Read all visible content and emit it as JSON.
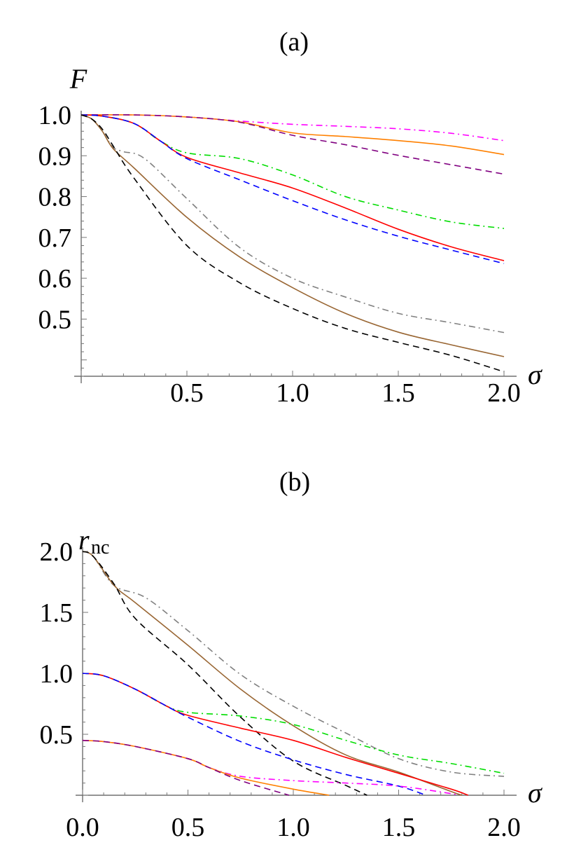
{
  "chart_data": [
    {
      "type": "line",
      "title": "(a)",
      "xlabel": "σ",
      "ylabel": "F",
      "xlim": [
        0,
        2.0
      ],
      "ylim": [
        0.36,
        1.0
      ],
      "grid": false,
      "xticks": [
        "0.5",
        "1.0",
        "1.5",
        "2.0"
      ],
      "yticks": [
        "0.5",
        "0.6",
        "0.7",
        "0.8",
        "0.9",
        "1.0"
      ],
      "series": [
        {
          "color": "#ff00ff",
          "style": "dotdash",
          "points": [
            [
              0,
              1
            ],
            [
              0.25,
              1.0
            ],
            [
              0.5,
              0.995
            ],
            [
              0.75,
              0.985
            ],
            [
              1.0,
              0.977
            ],
            [
              1.25,
              0.972
            ],
            [
              1.5,
              0.966
            ],
            [
              1.75,
              0.955
            ],
            [
              2.0,
              0.937
            ]
          ]
        },
        {
          "color": "#ff8000",
          "style": "solid",
          "points": [
            [
              0,
              1
            ],
            [
              0.25,
              1.0
            ],
            [
              0.5,
              0.995
            ],
            [
              0.75,
              0.983
            ],
            [
              1.0,
              0.956
            ],
            [
              1.25,
              0.947
            ],
            [
              1.5,
              0.937
            ],
            [
              1.75,
              0.924
            ],
            [
              2.0,
              0.903
            ]
          ]
        },
        {
          "color": "#800080",
          "style": "dashed",
          "points": [
            [
              0,
              1
            ],
            [
              0.25,
              1.0
            ],
            [
              0.5,
              0.995
            ],
            [
              0.75,
              0.982
            ],
            [
              1.0,
              0.95
            ],
            [
              1.25,
              0.927
            ],
            [
              1.5,
              0.901
            ],
            [
              1.75,
              0.878
            ],
            [
              2.0,
              0.855
            ]
          ]
        },
        {
          "color": "#00dd00",
          "style": "dotdash",
          "points": [
            [
              0,
              1
            ],
            [
              0.1,
              0.997
            ],
            [
              0.25,
              0.979
            ],
            [
              0.375,
              0.936
            ],
            [
              0.5,
              0.907
            ],
            [
              0.75,
              0.893
            ],
            [
              1.0,
              0.853
            ],
            [
              1.25,
              0.8
            ],
            [
              1.5,
              0.767
            ],
            [
              1.75,
              0.738
            ],
            [
              2.0,
              0.722
            ]
          ]
        },
        {
          "color": "#ff0000",
          "style": "solid",
          "points": [
            [
              0,
              1
            ],
            [
              0.1,
              0.997
            ],
            [
              0.25,
              0.979
            ],
            [
              0.375,
              0.936
            ],
            [
              0.5,
              0.896
            ],
            [
              0.75,
              0.858
            ],
            [
              1.0,
              0.821
            ],
            [
              1.25,
              0.772
            ],
            [
              1.5,
              0.72
            ],
            [
              1.75,
              0.677
            ],
            [
              2.0,
              0.643
            ]
          ]
        },
        {
          "color": "#0000ff",
          "style": "dashed",
          "points": [
            [
              0,
              1
            ],
            [
              0.1,
              0.997
            ],
            [
              0.25,
              0.979
            ],
            [
              0.375,
              0.936
            ],
            [
              0.5,
              0.893
            ],
            [
              0.75,
              0.841
            ],
            [
              1.0,
              0.79
            ],
            [
              1.25,
              0.743
            ],
            [
              1.5,
              0.703
            ],
            [
              1.75,
              0.669
            ],
            [
              2.0,
              0.636
            ]
          ]
        },
        {
          "color": "#808080",
          "style": "dotdash",
          "points": [
            [
              0,
              1
            ],
            [
              0.05,
              0.99
            ],
            [
              0.1,
              0.96
            ],
            [
              0.15,
              0.921
            ],
            [
              0.2,
              0.91
            ],
            [
              0.3,
              0.893
            ],
            [
              0.5,
              0.795
            ],
            [
              0.75,
              0.675
            ],
            [
              1.0,
              0.6
            ],
            [
              1.25,
              0.554
            ],
            [
              1.5,
              0.514
            ],
            [
              1.75,
              0.491
            ],
            [
              2.0,
              0.467
            ]
          ]
        },
        {
          "color": "#996633",
          "style": "solid",
          "points": [
            [
              0,
              1
            ],
            [
              0.05,
              0.99
            ],
            [
              0.1,
              0.96
            ],
            [
              0.15,
              0.918
            ],
            [
              0.25,
              0.87
            ],
            [
              0.5,
              0.749
            ],
            [
              0.75,
              0.652
            ],
            [
              1.0,
              0.577
            ],
            [
              1.25,
              0.514
            ],
            [
              1.5,
              0.468
            ],
            [
              1.75,
              0.437
            ],
            [
              2.0,
              0.408
            ]
          ]
        },
        {
          "color": "#000000",
          "style": "dashed",
          "points": [
            [
              0,
              1
            ],
            [
              0.05,
              0.99
            ],
            [
              0.1,
              0.965
            ],
            [
              0.15,
              0.925
            ],
            [
              0.25,
              0.845
            ],
            [
              0.5,
              0.68
            ],
            [
              0.75,
              0.589
            ],
            [
              1.0,
              0.526
            ],
            [
              1.25,
              0.477
            ],
            [
              1.5,
              0.443
            ],
            [
              1.75,
              0.411
            ],
            [
              2.0,
              0.371
            ]
          ]
        }
      ]
    },
    {
      "type": "line",
      "title": "(b)",
      "xlabel": "σ",
      "ylabel": "r",
      "ylabel_sub": "nc",
      "xlim": [
        0,
        2.0
      ],
      "ylim": [
        0,
        2.0
      ],
      "grid": false,
      "xticks": [
        "0.0",
        "0.5",
        "1.0",
        "1.5",
        "2.0"
      ],
      "yticks": [
        "0.5",
        "1.0",
        "1.5",
        "2.0"
      ],
      "series": [
        {
          "color": "#808080",
          "style": "dotdash",
          "points": [
            [
              0,
              2
            ],
            [
              0.05,
              1.96
            ],
            [
              0.15,
              1.72
            ],
            [
              0.3,
              1.62
            ],
            [
              0.5,
              1.35
            ],
            [
              0.75,
              0.99
            ],
            [
              1.0,
              0.73
            ],
            [
              1.25,
              0.51
            ],
            [
              1.5,
              0.3
            ],
            [
              1.75,
              0.19
            ],
            [
              2.0,
              0.155
            ]
          ]
        },
        {
          "color": "#996633",
          "style": "solid",
          "points": [
            [
              0,
              2
            ],
            [
              0.05,
              1.96
            ],
            [
              0.15,
              1.72
            ],
            [
              0.25,
              1.58
            ],
            [
              0.5,
              1.23
            ],
            [
              0.75,
              0.87
            ],
            [
              1.0,
              0.57
            ],
            [
              1.25,
              0.33
            ],
            [
              1.5,
              0.19
            ],
            [
              1.75,
              0.03
            ],
            [
              1.8,
              0
            ]
          ]
        },
        {
          "color": "#000000",
          "style": "dashed",
          "points": [
            [
              0,
              2
            ],
            [
              0.05,
              1.96
            ],
            [
              0.15,
              1.73
            ],
            [
              0.25,
              1.45
            ],
            [
              0.5,
              1.07
            ],
            [
              0.75,
              0.64
            ],
            [
              1.0,
              0.28
            ],
            [
              1.25,
              0.08
            ],
            [
              1.35,
              0
            ]
          ]
        },
        {
          "color": "#00dd00",
          "style": "dotdash",
          "points": [
            [
              0,
              1
            ],
            [
              0.1,
              0.98
            ],
            [
              0.25,
              0.87
            ],
            [
              0.4,
              0.73
            ],
            [
              0.5,
              0.68
            ],
            [
              0.75,
              0.65
            ],
            [
              1.0,
              0.58
            ],
            [
              1.25,
              0.45
            ],
            [
              1.5,
              0.33
            ],
            [
              1.75,
              0.26
            ],
            [
              2.0,
              0.18
            ]
          ]
        },
        {
          "color": "#ff0000",
          "style": "solid",
          "points": [
            [
              0,
              1
            ],
            [
              0.1,
              0.98
            ],
            [
              0.25,
              0.87
            ],
            [
              0.4,
              0.73
            ],
            [
              0.5,
              0.655
            ],
            [
              0.75,
              0.55
            ],
            [
              1.0,
              0.45
            ],
            [
              1.25,
              0.31
            ],
            [
              1.5,
              0.18
            ],
            [
              1.75,
              0.05
            ],
            [
              1.83,
              0
            ]
          ]
        },
        {
          "color": "#0000ff",
          "style": "dashed",
          "points": [
            [
              0,
              1
            ],
            [
              0.1,
              0.98
            ],
            [
              0.25,
              0.87
            ],
            [
              0.4,
              0.73
            ],
            [
              0.5,
              0.64
            ],
            [
              0.75,
              0.44
            ],
            [
              1.0,
              0.29
            ],
            [
              1.25,
              0.17
            ],
            [
              1.5,
              0.075
            ],
            [
              1.63,
              0
            ]
          ]
        },
        {
          "color": "#ff00ff",
          "style": "dotdash",
          "points": [
            [
              0,
              0.45
            ],
            [
              0.1,
              0.44
            ],
            [
              0.25,
              0.4
            ],
            [
              0.5,
              0.3
            ],
            [
              0.6,
              0.227
            ],
            [
              0.75,
              0.155
            ],
            [
              1.0,
              0.12
            ],
            [
              1.25,
              0.1
            ],
            [
              1.5,
              0.075
            ],
            [
              1.75,
              0.013
            ],
            [
              1.78,
              0
            ]
          ]
        },
        {
          "color": "#ff8000",
          "style": "solid",
          "points": [
            [
              0,
              0.45
            ],
            [
              0.1,
              0.44
            ],
            [
              0.25,
              0.4
            ],
            [
              0.5,
              0.3
            ],
            [
              0.6,
              0.227
            ],
            [
              0.75,
              0.14
            ],
            [
              1.0,
              0.05
            ],
            [
              1.17,
              0
            ]
          ]
        },
        {
          "color": "#800080",
          "style": "dashed",
          "points": [
            [
              0,
              0.45
            ],
            [
              0.1,
              0.44
            ],
            [
              0.25,
              0.4
            ],
            [
              0.5,
              0.3
            ],
            [
              0.6,
              0.227
            ],
            [
              0.75,
              0.12
            ],
            [
              0.98,
              0
            ]
          ]
        }
      ]
    }
  ]
}
